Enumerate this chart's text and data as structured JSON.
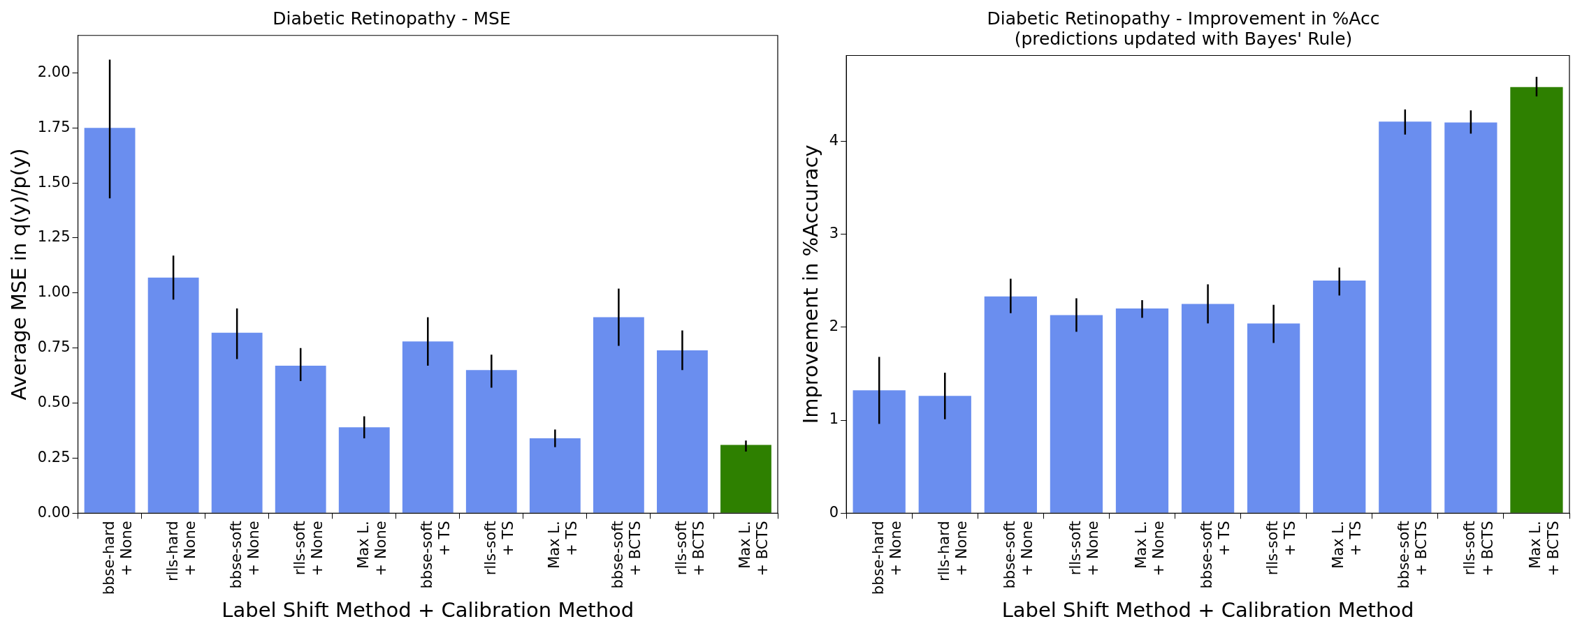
{
  "chart_data": [
    {
      "type": "bar",
      "title": "Diabetic Retinopathy - MSE",
      "xlabel": "Label Shift Method + Calibration Method",
      "ylabel": "Average MSE in q(y)/p(y)",
      "categories": [
        "bbse-hard\n+ None",
        "rlls-hard\n+ None",
        "bbse-soft\n+ None",
        "rlls-soft\n+ None",
        "Max L.\n+ None",
        "bbse-soft\n+ TS",
        "rlls-soft\n+ TS",
        "Max L.\n+ TS",
        "bbse-soft\n+ BCTS",
        "rlls-soft\n+ BCTS",
        "Max L.\n+ BCTS"
      ],
      "values": [
        1.75,
        1.07,
        0.82,
        0.67,
        0.39,
        0.78,
        0.65,
        0.34,
        0.89,
        0.74,
        0.31
      ],
      "errors": [
        [
          1.43,
          2.06
        ],
        [
          0.97,
          1.17
        ],
        [
          0.7,
          0.93
        ],
        [
          0.6,
          0.75
        ],
        [
          0.34,
          0.44
        ],
        [
          0.67,
          0.89
        ],
        [
          0.57,
          0.72
        ],
        [
          0.3,
          0.38
        ],
        [
          0.76,
          1.02
        ],
        [
          0.65,
          0.83
        ],
        [
          0.28,
          0.33
        ]
      ],
      "colors": [
        "#6a8eef",
        "#6a8eef",
        "#6a8eef",
        "#6a8eef",
        "#6a8eef",
        "#6a8eef",
        "#6a8eef",
        "#6a8eef",
        "#6a8eef",
        "#6a8eef",
        "#2e8000"
      ],
      "ylim": [
        0,
        2.17
      ],
      "yticks": [
        {
          "value": 0,
          "label": "0.00"
        },
        {
          "value": 0.25,
          "label": "0.25"
        },
        {
          "value": 0.5,
          "label": "0.50"
        },
        {
          "value": 0.75,
          "label": "0.75"
        },
        {
          "value": 1,
          "label": "1.00"
        },
        {
          "value": 1.25,
          "label": "1.25"
        },
        {
          "value": 1.5,
          "label": "1.50"
        },
        {
          "value": 1.75,
          "label": "1.75"
        },
        {
          "value": 2,
          "label": "2.00"
        }
      ]
    },
    {
      "type": "bar",
      "title": "Diabetic Retinopathy - Improvement in %Acc",
      "subtitle": "(predictions updated with Bayes' Rule)",
      "xlabel": "Label Shift Method + Calibration Method",
      "ylabel": "Improvement in %Accuracy",
      "categories": [
        "bbse-hard\n+ None",
        "rlls-hard\n+ None",
        "bbse-soft\n+ None",
        "rlls-soft\n+ None",
        "Max L.\n+ None",
        "bbse-soft\n+ TS",
        "rlls-soft\n+ TS",
        "Max L.\n+ TS",
        "bbse-soft\n+ BCTS",
        "rlls-soft\n+ BCTS",
        "Max L.\n+ BCTS"
      ],
      "values": [
        1.32,
        1.26,
        2.33,
        2.13,
        2.2,
        2.25,
        2.04,
        2.5,
        4.21,
        4.2,
        4.58
      ],
      "errors": [
        [
          0.96,
          1.68
        ],
        [
          1.01,
          1.51
        ],
        [
          2.15,
          2.52
        ],
        [
          1.95,
          2.31
        ],
        [
          2.1,
          2.29
        ],
        [
          2.04,
          2.46
        ],
        [
          1.83,
          2.24
        ],
        [
          2.34,
          2.64
        ],
        [
          4.07,
          4.34
        ],
        [
          4.08,
          4.33
        ],
        [
          4.48,
          4.69
        ]
      ],
      "colors": [
        "#6a8eef",
        "#6a8eef",
        "#6a8eef",
        "#6a8eef",
        "#6a8eef",
        "#6a8eef",
        "#6a8eef",
        "#6a8eef",
        "#6a8eef",
        "#6a8eef",
        "#2e8000"
      ],
      "ylim": [
        0,
        4.92
      ],
      "yticks": [
        0,
        1,
        2,
        3,
        4
      ]
    }
  ]
}
